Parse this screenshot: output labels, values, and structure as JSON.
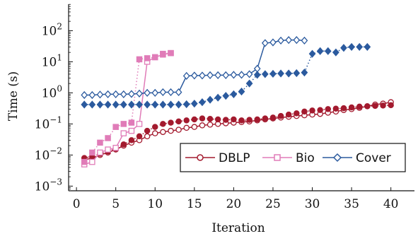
{
  "chart_data": {
    "type": "line",
    "xlabel": "Iteration",
    "ylabel": "Time (s)",
    "xlim": [
      -1,
      43
    ],
    "xticks": [
      0,
      5,
      10,
      15,
      20,
      25,
      30,
      35,
      40
    ],
    "ylim_log10": [
      -3.15,
      2.85
    ],
    "y_scale": "log",
    "yticks": [
      {
        "exp": -3,
        "base": "10",
        "sup": "−3"
      },
      {
        "exp": -2,
        "base": "10",
        "sup": "−2"
      },
      {
        "exp": -1,
        "base": "10",
        "sup": "−1"
      },
      {
        "exp": 0,
        "base": "10",
        "sup": "0"
      },
      {
        "exp": 1,
        "base": "10",
        "sup": "1"
      },
      {
        "exp": 2,
        "base": "10",
        "sup": "2"
      }
    ],
    "grid": false,
    "legend_position": "lower-right",
    "legend": [
      {
        "label": "DBLP",
        "marker": "circle-open",
        "color": "#a31a2e"
      },
      {
        "label": "Bio",
        "marker": "square-open",
        "color": "#e07cb8"
      },
      {
        "label": "Cover",
        "marker": "diamond-open",
        "color": "#2b5a9e"
      }
    ],
    "series": [
      {
        "name": "DBLP",
        "color": "#a31a2e",
        "style": "solid",
        "marker": "circle",
        "filled": false,
        "x": [
          1,
          2,
          3,
          4,
          5,
          6,
          7,
          8,
          9,
          10,
          11,
          12,
          13,
          14,
          15,
          16,
          17,
          18,
          19,
          20,
          21,
          22,
          23,
          24,
          25,
          26,
          27,
          28,
          29,
          30,
          31,
          32,
          33,
          34,
          35,
          36,
          37,
          38,
          39,
          40
        ],
        "y": [
          0.007,
          0.008,
          0.01,
          0.012,
          0.015,
          0.02,
          0.025,
          0.03,
          0.04,
          0.05,
          0.055,
          0.06,
          0.065,
          0.075,
          0.08,
          0.09,
          0.095,
          0.1,
          0.105,
          0.11,
          0.115,
          0.12,
          0.13,
          0.14,
          0.15,
          0.16,
          0.17,
          0.18,
          0.19,
          0.2,
          0.21,
          0.23,
          0.25,
          0.28,
          0.3,
          0.33,
          0.37,
          0.42,
          0.45,
          0.5
        ]
      },
      {
        "name": "DBLP",
        "color": "#a31a2e",
        "style": "dotted",
        "marker": "circle",
        "filled": true,
        "x": [
          1,
          2,
          3,
          4,
          5,
          6,
          7,
          8,
          9,
          10,
          11,
          12,
          13,
          14,
          15,
          16,
          17,
          18,
          19,
          20,
          21,
          22,
          23,
          24,
          25,
          26,
          27,
          28,
          29,
          30,
          31,
          32,
          33,
          34,
          35,
          36,
          37,
          38,
          39,
          40
        ],
        "y": [
          0.008,
          0.009,
          0.011,
          0.013,
          0.016,
          0.022,
          0.03,
          0.04,
          0.06,
          0.08,
          0.1,
          0.11,
          0.12,
          0.13,
          0.14,
          0.15,
          0.145,
          0.14,
          0.135,
          0.14,
          0.13,
          0.135,
          0.14,
          0.15,
          0.16,
          0.18,
          0.2,
          0.22,
          0.25,
          0.27,
          0.28,
          0.3,
          0.31,
          0.32,
          0.34,
          0.36,
          0.37,
          0.38,
          0.39,
          0.4
        ]
      },
      {
        "name": "Bio",
        "color": "#e07cb8",
        "style": "solid",
        "marker": "square",
        "filled": false,
        "x": [
          1,
          2,
          3,
          4,
          5,
          6,
          7,
          8,
          9,
          10,
          11,
          12
        ],
        "y": [
          0.005,
          0.006,
          0.012,
          0.015,
          0.017,
          0.05,
          0.06,
          0.1,
          10,
          14,
          17,
          19
        ]
      },
      {
        "name": "Bio",
        "color": "#e07cb8",
        "style": "dotted",
        "marker": "square",
        "filled": true,
        "x": [
          1,
          2,
          3,
          4,
          5,
          6,
          7,
          8,
          9,
          10,
          11,
          12
        ],
        "y": [
          0.006,
          0.012,
          0.025,
          0.035,
          0.08,
          0.1,
          0.11,
          12,
          13,
          14,
          18,
          19
        ]
      },
      {
        "name": "Cover",
        "color": "#2b5a9e",
        "style": "solid",
        "marker": "diamond",
        "filled": false,
        "x": [
          1,
          2,
          3,
          4,
          5,
          6,
          7,
          8,
          9,
          10,
          11,
          12,
          13,
          14,
          15,
          16,
          17,
          18,
          19,
          20,
          21,
          22,
          23,
          24,
          25,
          26,
          27,
          28,
          29
        ],
        "y": [
          0.85,
          0.85,
          0.88,
          0.9,
          0.9,
          0.9,
          0.92,
          0.95,
          1.0,
          1.0,
          1.05,
          1.05,
          1.05,
          3.5,
          3.6,
          3.6,
          3.7,
          3.7,
          3.7,
          3.8,
          3.8,
          4.0,
          6.0,
          40,
          42,
          48,
          50,
          50,
          48
        ]
      },
      {
        "name": "Cover",
        "color": "#2b5a9e",
        "style": "dotted",
        "marker": "diamond",
        "filled": true,
        "x": [
          1,
          2,
          3,
          4,
          5,
          6,
          7,
          8,
          9,
          10,
          11,
          12,
          13,
          14,
          15,
          16,
          17,
          18,
          19,
          20,
          21,
          22,
          23,
          24,
          25,
          26,
          27,
          28,
          29,
          30,
          31,
          32,
          33,
          34,
          35,
          36,
          37
        ],
        "y": [
          0.42,
          0.42,
          0.42,
          0.42,
          0.42,
          0.42,
          0.42,
          0.42,
          0.42,
          0.42,
          0.42,
          0.42,
          0.42,
          0.43,
          0.45,
          0.5,
          0.6,
          0.7,
          0.8,
          0.9,
          1.1,
          2.0,
          3.8,
          4.0,
          4.1,
          4.2,
          4.2,
          4.3,
          4.5,
          18,
          22,
          22,
          20,
          28,
          30,
          30,
          30
        ]
      }
    ]
  }
}
